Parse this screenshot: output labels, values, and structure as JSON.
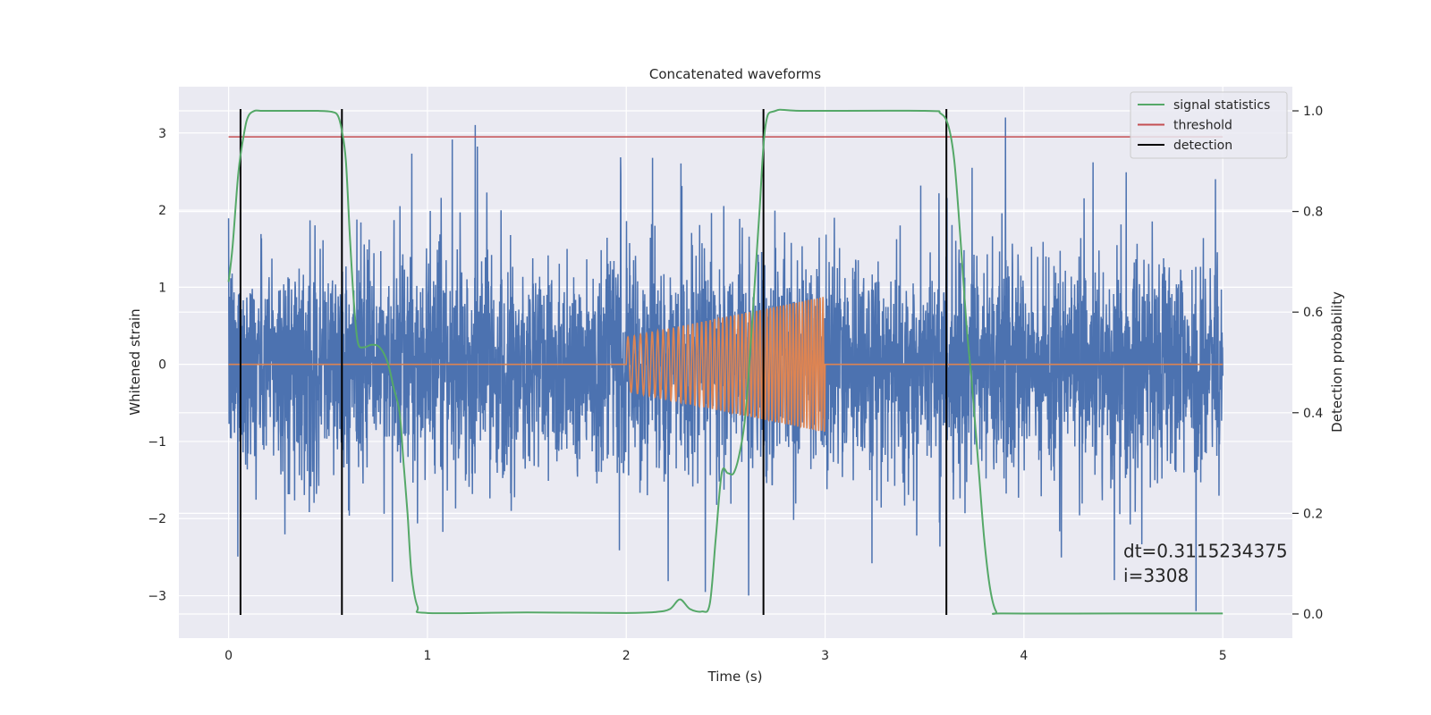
{
  "chart_data": {
    "type": "line",
    "title": "Concatenated waveforms",
    "xlabel": "Time (s)",
    "ylabel": "Whitened strain",
    "ylabel_right": "Detection probability",
    "xlim": [
      -0.25,
      5.35
    ],
    "ylim": [
      -3.55,
      3.6
    ],
    "ylim_right": [
      -0.048,
      1.048
    ],
    "xticks": [
      0,
      1,
      2,
      3,
      4,
      5
    ],
    "yticks": [
      -3,
      -2,
      -1,
      0,
      1,
      2,
      3
    ],
    "yticks_right": [
      0.0,
      0.2,
      0.4,
      0.6,
      0.8,
      1.0
    ],
    "xtick_labels": [
      "0",
      "1",
      "2",
      "3",
      "4",
      "5"
    ],
    "ytick_labels": [
      "−3",
      "−2",
      "−1",
      "0",
      "1",
      "2",
      "3"
    ],
    "ytick_labels_right": [
      "0.0",
      "0.2",
      "0.4",
      "0.6",
      "0.8",
      "1.0"
    ],
    "grid": true,
    "legend_position": "top-right",
    "legend": [
      {
        "label": "signal statistics",
        "color": "#55a868"
      },
      {
        "label": "threshold",
        "color": "#c44e52"
      },
      {
        "label": "detection",
        "color": "#000000"
      }
    ],
    "series": [
      {
        "kind": "noise",
        "color": "#4c72b0",
        "x_range": [
          0,
          5
        ],
        "typical_amplitude": 0.65,
        "max_amplitude": 3.2
      },
      {
        "kind": "chirp",
        "color": "#dd8452",
        "baseline": 0,
        "baseline_range": [
          0,
          5
        ],
        "chirp_range": [
          2,
          3
        ],
        "amplitude_start": 0.35,
        "amplitude_end": 0.88,
        "periods_approx": 50
      },
      {
        "name": "signal statistics",
        "color": "#55a868",
        "axis": "right",
        "x": [
          0,
          0.02,
          0.05,
          0.08,
          0.1,
          0.13,
          0.16,
          0.2,
          0.3,
          0.45,
          0.52,
          0.55,
          0.57,
          0.59,
          0.61,
          0.63,
          0.65,
          0.68,
          0.72,
          0.76,
          0.8,
          0.83,
          0.86,
          0.88,
          0.9,
          0.92,
          0.95,
          1.0,
          1.5,
          2.0,
          2.15,
          2.22,
          2.27,
          2.32,
          2.38,
          2.42,
          2.45,
          2.48,
          2.51,
          2.54,
          2.57,
          2.6,
          2.64,
          2.67,
          2.7,
          2.75,
          2.9,
          3.5,
          3.58,
          3.62,
          3.65,
          3.68,
          3.71,
          3.74,
          3.77,
          3.8,
          3.83,
          3.86,
          3.9,
          4.5,
          5.0
        ],
        "y": [
          0.66,
          0.73,
          0.88,
          0.96,
          0.99,
          1.0,
          1.0,
          1.0,
          1.0,
          1.0,
          0.998,
          0.99,
          0.96,
          0.9,
          0.75,
          0.62,
          0.54,
          0.53,
          0.535,
          0.53,
          0.5,
          0.45,
          0.4,
          0.3,
          0.2,
          0.08,
          0.015,
          0.002,
          0.003,
          0.002,
          0.004,
          0.01,
          0.029,
          0.01,
          0.005,
          0.02,
          0.15,
          0.28,
          0.28,
          0.28,
          0.32,
          0.4,
          0.62,
          0.8,
          0.97,
          1.0,
          1.0,
          1.0,
          0.995,
          0.97,
          0.9,
          0.75,
          0.58,
          0.45,
          0.3,
          0.15,
          0.05,
          0.005,
          0.001,
          0.001,
          0.001
        ]
      },
      {
        "name": "threshold",
        "color": "#c44e52",
        "axis": "left",
        "x": [
          0,
          5
        ],
        "y": [
          2.95,
          2.95
        ]
      }
    ],
    "detections": [
      0.06,
      0.57,
      2.69,
      3.61
    ],
    "annotations": [
      {
        "text": "dt=0.3115234375",
        "x": 4.5,
        "y": -2.5
      },
      {
        "text": " i=3308",
        "x": 4.5,
        "y": -2.82
      }
    ]
  }
}
